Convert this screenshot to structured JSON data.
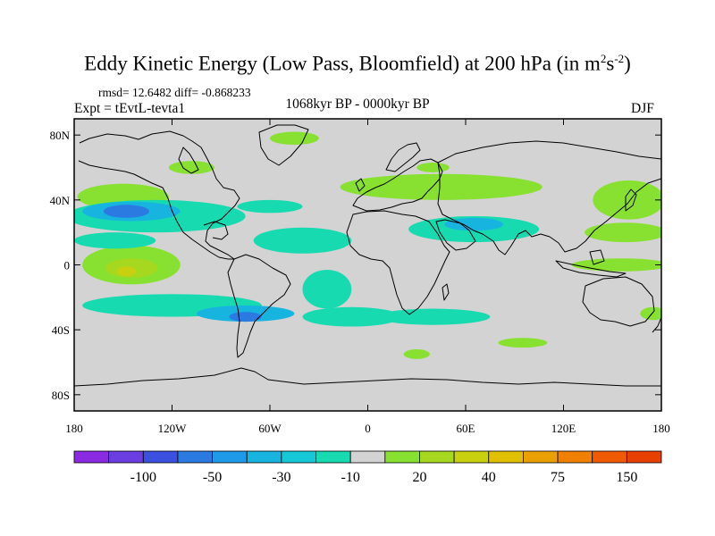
{
  "title": {
    "main": "Eddy Kinetic Energy (Low Pass, Bloomfield) at 200 hPa (in m",
    "sup1": "2",
    "mid": "s",
    "sup2": "-2",
    "close": ")"
  },
  "stats": "rmsd= 12.6482 diff= -0.868233",
  "experiment": "Expt = tEvtL-tevta1",
  "period": "1068kyr BP - 0000kyr BP",
  "season": "DJF",
  "map": {
    "projection": "cylindrical-equidistant",
    "lon_range": [
      -180,
      180
    ],
    "lat_range": [
      -90,
      90
    ],
    "land_outline_color": "#000000",
    "no_change_color": "#d3d3d3",
    "y_ticks": [
      {
        "lat": 80,
        "label": "80N"
      },
      {
        "lat": 40,
        "label": "40N"
      },
      {
        "lat": 0,
        "label": "0"
      },
      {
        "lat": -40,
        "label": "40S"
      },
      {
        "lat": -80,
        "label": "80S"
      }
    ],
    "x_ticks": [
      {
        "lon": -180,
        "label": "180"
      },
      {
        "lon": -120,
        "label": "120W"
      },
      {
        "lon": -60,
        "label": "60W"
      },
      {
        "lon": 0,
        "label": "0"
      },
      {
        "lon": 60,
        "label": "60E"
      },
      {
        "lon": 120,
        "label": "120E"
      },
      {
        "lon": 180,
        "label": "180"
      }
    ],
    "regions": [
      {
        "level": 20,
        "lon": -150,
        "lat": 42,
        "rlon": 28,
        "rlat": 8
      },
      {
        "level": 20,
        "lon": -108,
        "lat": 60,
        "rlon": 14,
        "rlat": 4
      },
      {
        "level": 20,
        "lon": -45,
        "lat": 78,
        "rlon": 15,
        "rlat": 4
      },
      {
        "level": 20,
        "lon": 45,
        "lat": 48,
        "rlon": 62,
        "rlat": 8
      },
      {
        "level": 20,
        "lon": 40,
        "lat": 60,
        "rlon": 10,
        "rlat": 3
      },
      {
        "level": 20,
        "lon": 160,
        "lat": 40,
        "rlon": 22,
        "rlat": 12
      },
      {
        "level": 20,
        "lon": 158,
        "lat": 20,
        "rlon": 25,
        "rlat": 6
      },
      {
        "level": 20,
        "lon": 155,
        "lat": 0,
        "rlon": 30,
        "rlat": 4
      },
      {
        "level": 20,
        "lon": -145,
        "lat": 0,
        "rlon": 30,
        "rlat": 12
      },
      {
        "level": 20,
        "lon": 30,
        "lat": -55,
        "rlon": 8,
        "rlat": 3
      },
      {
        "level": 20,
        "lon": 95,
        "lat": -48,
        "rlon": 15,
        "rlat": 3
      },
      {
        "level": 20,
        "lon": 175,
        "lat": -30,
        "rlon": 8,
        "rlat": 4
      },
      {
        "level": 30,
        "lon": -145,
        "lat": -2,
        "rlon": 16,
        "rlat": 6
      },
      {
        "level": 40,
        "lon": -148,
        "lat": -4,
        "rlon": 6,
        "rlat": 3
      },
      {
        "level": -10,
        "lon": -130,
        "lat": 30,
        "rlon": 55,
        "rlat": 10
      },
      {
        "level": -10,
        "lon": -155,
        "lat": 15,
        "rlon": 25,
        "rlat": 5
      },
      {
        "level": -10,
        "lon": -120,
        "lat": -25,
        "rlon": 55,
        "rlat": 7
      },
      {
        "level": -10,
        "lon": -40,
        "lat": 15,
        "rlon": 30,
        "rlat": 8
      },
      {
        "level": -10,
        "lon": -25,
        "lat": -15,
        "rlon": 15,
        "rlat": 12
      },
      {
        "level": -10,
        "lon": -10,
        "lat": -32,
        "rlon": 30,
        "rlat": 6
      },
      {
        "level": -10,
        "lon": 40,
        "lat": -32,
        "rlon": 35,
        "rlat": 5
      },
      {
        "level": -10,
        "lon": 65,
        "lat": 22,
        "rlon": 40,
        "rlat": 8
      },
      {
        "level": -10,
        "lon": -60,
        "lat": 36,
        "rlon": 20,
        "rlat": 4
      },
      {
        "level": -30,
        "lon": -145,
        "lat": 33,
        "rlon": 30,
        "rlat": 6
      },
      {
        "level": -30,
        "lon": -75,
        "lat": -30,
        "rlon": 30,
        "rlat": 5
      },
      {
        "level": -30,
        "lon": 65,
        "lat": 25,
        "rlon": 18,
        "rlat": 4
      },
      {
        "level": -50,
        "lon": -148,
        "lat": 33,
        "rlon": 14,
        "rlat": 4
      },
      {
        "level": -50,
        "lon": -75,
        "lat": -32,
        "rlon": 10,
        "rlat": 3
      }
    ]
  },
  "colorbar": {
    "colors": [
      "#8a2be2",
      "#6a3ee0",
      "#3c50e0",
      "#2a7ae2",
      "#1e9ae8",
      "#18b4e0",
      "#16c8d6",
      "#18dab0",
      "#d3d3d3",
      "#88e030",
      "#a6d820",
      "#c8d010",
      "#e0c000",
      "#eaa000",
      "#f08000",
      "#f05a00",
      "#e84000"
    ],
    "labels": [
      {
        "after_box": 2,
        "text": "-100"
      },
      {
        "after_box": 4,
        "text": "-50"
      },
      {
        "after_box": 6,
        "text": "-30"
      },
      {
        "after_box": 8,
        "text": "-10"
      },
      {
        "after_box": 10,
        "text": "20"
      },
      {
        "after_box": 12,
        "text": "40"
      },
      {
        "after_box": 14,
        "text": "75"
      },
      {
        "after_box": 16,
        "text": "150"
      }
    ]
  }
}
